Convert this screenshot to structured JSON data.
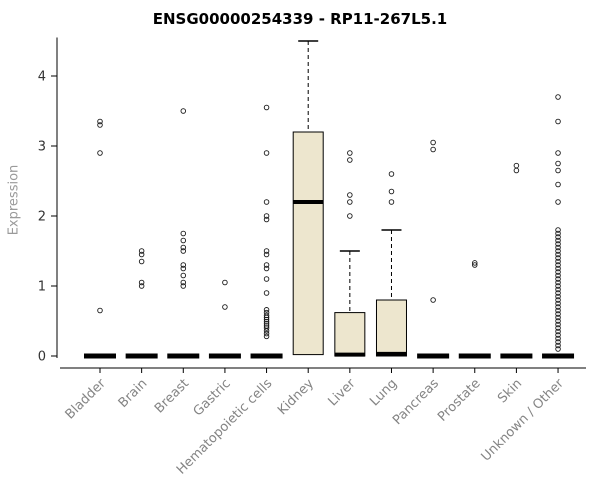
{
  "chart_data": {
    "type": "boxplot",
    "title": "ENSG00000254339 - RP11-267L5.1",
    "ylabel": "Expression",
    "ylim": [
      0,
      4.7
    ],
    "yticks": [
      0,
      1,
      2,
      3,
      4
    ],
    "grid": false,
    "legend": "none",
    "box_fill_color": "#EDE6CE",
    "box_stroke_color": "#000000",
    "tick_label_color": "#333333",
    "category_label_color": "#848484",
    "categories": [
      "Bladder",
      "Brain",
      "Breast",
      "Gastric",
      "Hematopoietic cells",
      "Kidney",
      "Liver",
      "Lung",
      "Pancreas",
      "Prostate",
      "Skin",
      "Unknown / Other"
    ],
    "series": [
      {
        "category": "Bladder",
        "q1": 0,
        "median": 0,
        "q3": 0,
        "whisker_low": 0,
        "whisker_high": 0,
        "outliers": [
          0.65,
          2.9,
          3.3,
          3.35
        ]
      },
      {
        "category": "Brain",
        "q1": 0,
        "median": 0,
        "q3": 0,
        "whisker_low": 0,
        "whisker_high": 0,
        "outliers": [
          1.0,
          1.05,
          1.35,
          1.45,
          1.5
        ]
      },
      {
        "category": "Breast",
        "q1": 0,
        "median": 0,
        "q3": 0,
        "whisker_low": 0,
        "whisker_high": 0,
        "outliers": [
          1.0,
          1.05,
          1.15,
          1.25,
          1.3,
          1.5,
          1.55,
          1.65,
          1.75,
          3.5
        ]
      },
      {
        "category": "Gastric",
        "q1": 0,
        "median": 0,
        "q3": 0,
        "whisker_low": 0,
        "whisker_high": 0,
        "outliers": [
          0.7,
          1.05
        ]
      },
      {
        "category": "Hematopoietic cells",
        "q1": 0,
        "median": 0,
        "q3": 0,
        "whisker_low": 0,
        "whisker_high": 0,
        "outliers": [
          3.55,
          2.9,
          2.2,
          2.0,
          1.95,
          1.5,
          1.45,
          1.3,
          1.25,
          1.1,
          0.9,
          0.66,
          0.62,
          0.58,
          0.55,
          0.52,
          0.49,
          0.46,
          0.43,
          0.4,
          0.36,
          0.32,
          0.28
        ]
      },
      {
        "category": "Kidney",
        "q1": 0.02,
        "median": 2.2,
        "q3": 3.2,
        "whisker_low": 0,
        "whisker_high": 4.5,
        "outliers": []
      },
      {
        "category": "Liver",
        "q1": 0,
        "median": 0.02,
        "q3": 0.62,
        "whisker_low": 0,
        "whisker_high": 1.5,
        "outliers": [
          2.0,
          2.2,
          2.3,
          2.8,
          2.9
        ]
      },
      {
        "category": "Lung",
        "q1": 0,
        "median": 0.03,
        "q3": 0.8,
        "whisker_low": 0,
        "whisker_high": 1.8,
        "outliers": [
          2.2,
          2.35,
          2.6
        ]
      },
      {
        "category": "Pancreas",
        "q1": 0,
        "median": 0,
        "q3": 0,
        "whisker_low": 0,
        "whisker_high": 0,
        "outliers": [
          0.8,
          2.95,
          3.05
        ]
      },
      {
        "category": "Prostate",
        "q1": 0,
        "median": 0,
        "q3": 0,
        "whisker_low": 0,
        "whisker_high": 0,
        "outliers": [
          1.3,
          1.33
        ]
      },
      {
        "category": "Skin",
        "q1": 0,
        "median": 0,
        "q3": 0,
        "whisker_low": 0,
        "whisker_high": 0,
        "outliers": [
          2.65,
          2.72
        ]
      },
      {
        "category": "Unknown / Other",
        "q1": 0,
        "median": 0,
        "q3": 0,
        "whisker_low": 0,
        "whisker_high": 0,
        "outliers": [
          3.7,
          3.35,
          2.9,
          2.75,
          2.65,
          2.45,
          2.2,
          1.8,
          1.75,
          1.7,
          1.65,
          1.6,
          1.55,
          1.5,
          1.45,
          1.4,
          1.35,
          1.3,
          1.25,
          1.2,
          1.15,
          1.1,
          1.05,
          1.0,
          0.95,
          0.9,
          0.85,
          0.8,
          0.75,
          0.7,
          0.65,
          0.6,
          0.55,
          0.5,
          0.45,
          0.4,
          0.35,
          0.3,
          0.25,
          0.2,
          0.15,
          0.1
        ]
      }
    ]
  }
}
